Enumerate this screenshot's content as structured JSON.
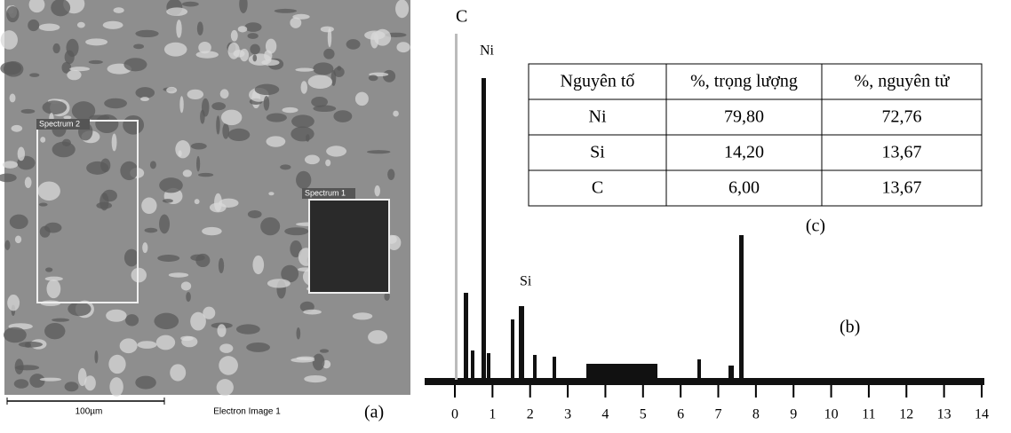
{
  "sem_image": {
    "boxes": [
      "Spectrum 2",
      "Spectrum 1"
    ],
    "scale_bar": "100µm",
    "caption": "Electron Image 1",
    "label": "(a)"
  },
  "spectrum": {
    "peaks": [
      "C",
      "Ni",
      "Si"
    ],
    "axis_labels": [
      "0",
      "1",
      "2",
      "3",
      "4",
      "5",
      "6",
      "7",
      "8",
      "9",
      "10",
      "11",
      "12",
      "13",
      "14"
    ],
    "label": "(b)"
  },
  "table": {
    "header": [
      "Nguyên tố",
      "%, trọng lượng",
      "%, nguyên tử"
    ],
    "rows": [
      [
        "Ni",
        "79,80",
        "72,76"
      ],
      [
        "Si",
        "14,20",
        "13,67"
      ],
      [
        "C",
        "6,00",
        "13,67"
      ]
    ],
    "label": "(c)"
  }
}
